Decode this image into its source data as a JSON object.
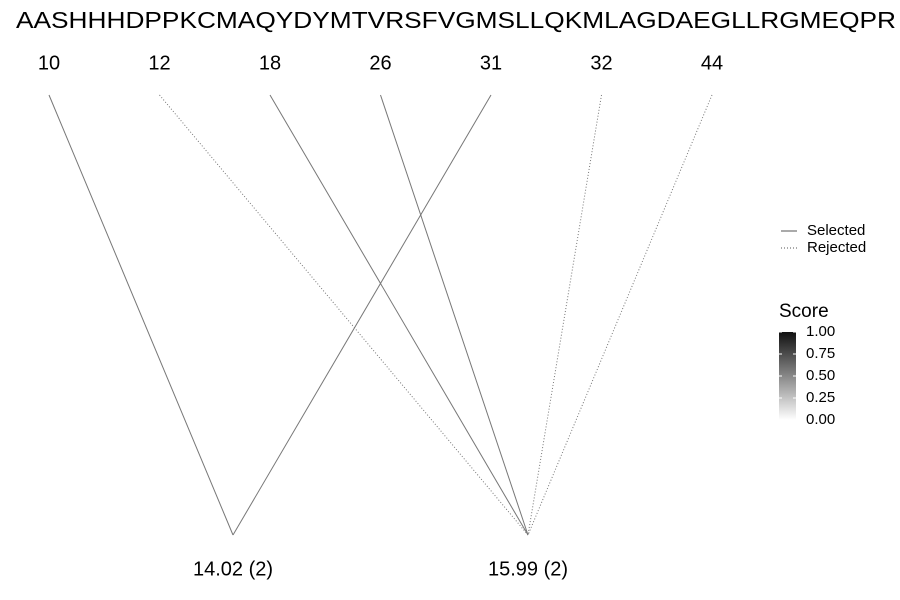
{
  "sequence": "AASHHHDPPKCMAQYDYMTVRSFVGMSLLQKMLAGDAEGLLRGMEQPR",
  "positions": [
    "10",
    "12",
    "18",
    "26",
    "31",
    "32",
    "44"
  ],
  "masses": [
    "14.02 (2)",
    "15.99 (2)"
  ],
  "edges": [
    {
      "from": 0,
      "to": 0,
      "status": "Selected"
    },
    {
      "from": 1,
      "to": 1,
      "status": "Rejected"
    },
    {
      "from": 2,
      "to": 1,
      "status": "Selected"
    },
    {
      "from": 3,
      "to": 1,
      "status": "Selected"
    },
    {
      "from": 4,
      "to": 0,
      "status": "Selected"
    },
    {
      "from": 5,
      "to": 1,
      "status": "Rejected"
    },
    {
      "from": 6,
      "to": 1,
      "status": "Rejected"
    }
  ],
  "legend": {
    "linetypes": [
      {
        "label": "Selected",
        "dash": "none"
      },
      {
        "label": "Rejected",
        "dash": "1 2"
      }
    ],
    "score_title": "Score",
    "score_ticks": [
      {
        "value": 1,
        "label": "1.00"
      },
      {
        "value": 0.75,
        "label": "0.75"
      },
      {
        "value": 0.5,
        "label": "0.50"
      },
      {
        "value": 0.25,
        "label": "0.25"
      },
      {
        "value": 0,
        "label": "0.00"
      }
    ]
  }
}
